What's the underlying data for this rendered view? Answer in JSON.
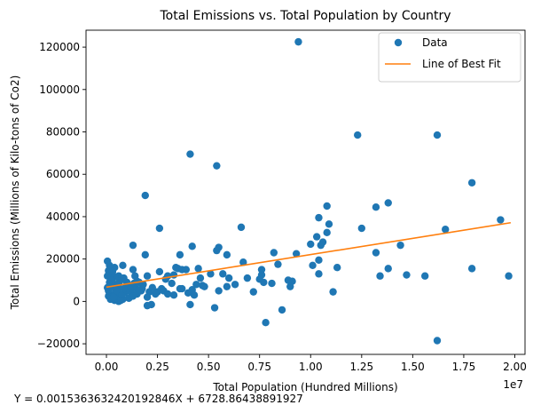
{
  "chart_data": {
    "type": "scatter",
    "title": "Total Emissions vs. Total Population by Country",
    "xlabel": "Total Population (Hundred Millions)",
    "ylabel": "Total Emissions (Millions of Kilo-tons of Co2)",
    "x_offset_text": "1e7",
    "equation": "Y = 0.0015363632420192846X + 6728.86438891927",
    "xlim": [
      -1000000,
      20500000
    ],
    "ylim": [
      -25000,
      128000
    ],
    "x_ticks": [
      0,
      2500000,
      5000000,
      7500000,
      10000000,
      12500000,
      15000000,
      17500000,
      20000000
    ],
    "x_tick_labels": [
      "0.00",
      "0.25",
      "0.50",
      "0.75",
      "1.00",
      "1.25",
      "1.50",
      "1.75",
      "2.00"
    ],
    "y_ticks": [
      -20000,
      0,
      20000,
      40000,
      60000,
      80000,
      100000,
      120000
    ],
    "y_tick_labels": [
      "−20000",
      "0",
      "20000",
      "40000",
      "60000",
      "80000",
      "100000",
      "120000"
    ],
    "grid": false,
    "legend_position": "top-right",
    "legend": [
      {
        "label": "Data",
        "kind": "marker",
        "color": "#1f77b4"
      },
      {
        "label": "Line of Best Fit",
        "kind": "line",
        "color": "#ff7f0e"
      }
    ],
    "fit_line": {
      "slope": 0.0015363632420192846,
      "intercept": 6728.86438891927,
      "x_range": [
        0,
        19800000
      ]
    },
    "series": [
      {
        "name": "Data",
        "color": "#1f77b4",
        "points": [
          [
            9400000,
            122500
          ],
          [
            12300000,
            78500
          ],
          [
            16200000,
            78500
          ],
          [
            4100000,
            69500
          ],
          [
            5400000,
            64000
          ],
          [
            17900000,
            56000
          ],
          [
            1900000,
            50000
          ],
          [
            13800000,
            46500
          ],
          [
            10800000,
            45000
          ],
          [
            13200000,
            44500
          ],
          [
            10400000,
            39500
          ],
          [
            19300000,
            38500
          ],
          [
            10900000,
            36500
          ],
          [
            6600000,
            35000
          ],
          [
            12500000,
            34500
          ],
          [
            2600000,
            34500
          ],
          [
            16600000,
            34000
          ],
          [
            10800000,
            32500
          ],
          [
            10300000,
            30500
          ],
          [
            10600000,
            28000
          ],
          [
            10000000,
            27000
          ],
          [
            1300000,
            26500
          ],
          [
            4200000,
            26000
          ],
          [
            14400000,
            26500
          ],
          [
            10500000,
            26500
          ],
          [
            5500000,
            25500
          ],
          [
            5400000,
            24000
          ],
          [
            13200000,
            23000
          ],
          [
            8200000,
            23000
          ],
          [
            9300000,
            22500
          ],
          [
            5900000,
            22000
          ],
          [
            3600000,
            22000
          ],
          [
            1900000,
            22000
          ],
          [
            10400000,
            19500
          ],
          [
            6700000,
            18500
          ],
          [
            8400000,
            17500
          ],
          [
            800000,
            17000
          ],
          [
            10100000,
            17000
          ],
          [
            13800000,
            15500
          ],
          [
            17900000,
            15500
          ],
          [
            3400000,
            16000
          ],
          [
            3500000,
            15500
          ],
          [
            11300000,
            16000
          ],
          [
            400000,
            16000
          ],
          [
            7600000,
            15000
          ],
          [
            4500000,
            15500
          ],
          [
            1300000,
            15000
          ],
          [
            3700000,
            15000
          ],
          [
            3900000,
            15000
          ],
          [
            5100000,
            13000
          ],
          [
            2600000,
            14000
          ],
          [
            100000,
            14500
          ],
          [
            300000,
            14000
          ],
          [
            5700000,
            13000
          ],
          [
            10400000,
            13000
          ],
          [
            3300000,
            12500
          ],
          [
            7600000,
            12500
          ],
          [
            14700000,
            12500
          ],
          [
            15600000,
            12000
          ],
          [
            19700000,
            12000
          ],
          [
            13400000,
            12000
          ],
          [
            600000,
            12000
          ],
          [
            1400000,
            12000
          ],
          [
            2000000,
            12000
          ],
          [
            3000000,
            12000
          ],
          [
            50000,
            12000
          ],
          [
            200000,
            11000
          ],
          [
            4600000,
            11000
          ],
          [
            6000000,
            11000
          ],
          [
            2900000,
            10500
          ],
          [
            7500000,
            10500
          ],
          [
            6900000,
            11000
          ],
          [
            9100000,
            9500
          ],
          [
            8900000,
            10000
          ],
          [
            8100000,
            8500
          ],
          [
            7700000,
            9000
          ],
          [
            9000000,
            7000
          ],
          [
            4700000,
            7500
          ],
          [
            3200000,
            8500
          ],
          [
            1600000,
            9000
          ],
          [
            1800000,
            8000
          ],
          [
            4400000,
            8000
          ],
          [
            6300000,
            8000
          ],
          [
            5900000,
            7000
          ],
          [
            1000000,
            7500
          ],
          [
            300000,
            9000
          ],
          [
            4800000,
            7000
          ],
          [
            4200000,
            5500
          ],
          [
            3700000,
            6000
          ],
          [
            2700000,
            6000
          ],
          [
            1400000,
            6500
          ],
          [
            600000,
            6500
          ],
          [
            200000,
            7500
          ],
          [
            3600000,
            6000
          ],
          [
            2800000,
            5000
          ],
          [
            5500000,
            5000
          ],
          [
            7200000,
            4500
          ],
          [
            11100000,
            4500
          ],
          [
            3300000,
            3000
          ],
          [
            4000000,
            4000
          ],
          [
            4300000,
            3000
          ],
          [
            2100000,
            4500
          ],
          [
            1700000,
            5000
          ],
          [
            1200000,
            4500
          ],
          [
            900000,
            4000
          ],
          [
            500000,
            3500
          ],
          [
            300000,
            3000
          ],
          [
            100000,
            2500
          ],
          [
            700000,
            2000
          ],
          [
            1100000,
            1500
          ],
          [
            800000,
            1000
          ],
          [
            400000,
            500
          ],
          [
            200000,
            1000
          ],
          [
            600000,
            0
          ],
          [
            2000000,
            2000
          ],
          [
            3000000,
            3500
          ],
          [
            2500000,
            4500
          ],
          [
            1500000,
            3500
          ],
          [
            100000,
            5000
          ],
          [
            50000,
            6500
          ],
          [
            250000,
            8000
          ],
          [
            450000,
            5500
          ],
          [
            650000,
            9500
          ],
          [
            400000,
            11500
          ],
          [
            150000,
            9000
          ],
          [
            350000,
            7000
          ],
          [
            550000,
            4500
          ],
          [
            750000,
            3000
          ],
          [
            950000,
            5500
          ],
          [
            1150000,
            7000
          ],
          [
            1350000,
            8500
          ],
          [
            1750000,
            6000
          ],
          [
            2250000,
            6500
          ],
          [
            50000,
            19000
          ],
          [
            150000,
            17000
          ],
          [
            250000,
            10000
          ],
          [
            850000,
            11000
          ],
          [
            2200000,
            -1500
          ],
          [
            2000000,
            -2000
          ],
          [
            4100000,
            -1500
          ],
          [
            5300000,
            -3000
          ],
          [
            7800000,
            -10000
          ],
          [
            8600000,
            -4000
          ],
          [
            16200000,
            -18500
          ],
          [
            450000,
            1500
          ],
          [
            700000,
            500
          ],
          [
            1300000,
            2500
          ],
          [
            1600000,
            5500
          ],
          [
            2400000,
            3500
          ],
          [
            600000,
            8500
          ],
          [
            1000000,
            9000
          ],
          [
            1500000,
            9500
          ],
          [
            350000,
            2000
          ],
          [
            850000,
            6000
          ]
        ]
      }
    ]
  }
}
